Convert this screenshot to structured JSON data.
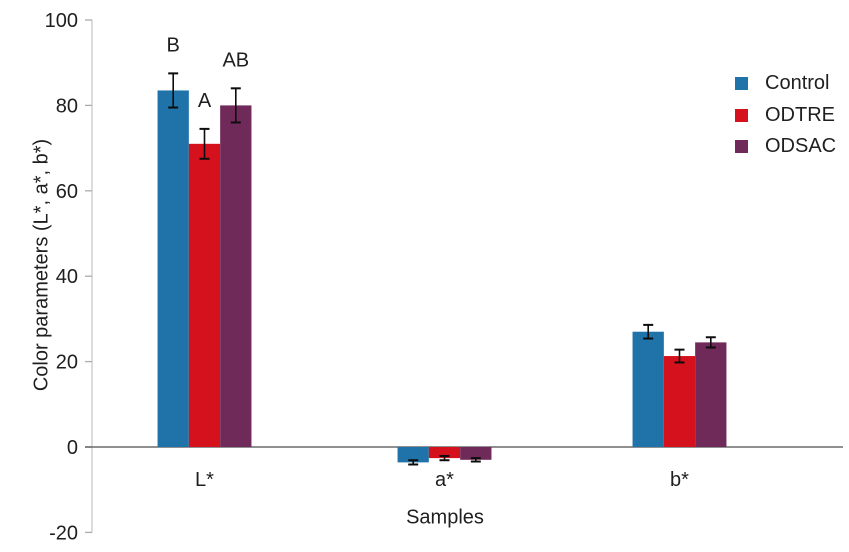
{
  "chart_data": {
    "type": "bar",
    "title": "",
    "xlabel": "Samples",
    "ylabel": "Color parameters (L*, a*, b*)",
    "categories": [
      "L*",
      "a*",
      "b*"
    ],
    "series": [
      {
        "name": "Control",
        "color": "#1F73A8",
        "values": [
          83.5,
          -3.6,
          27.0
        ],
        "errors": [
          4.0,
          0.5,
          1.6
        ]
      },
      {
        "name": "ODTRE",
        "color": "#D4111C",
        "values": [
          71.0,
          -2.6,
          21.3
        ],
        "errors": [
          3.5,
          0.5,
          1.5
        ]
      },
      {
        "name": "ODSAC",
        "color": "#702A5A",
        "values": [
          80.0,
          -3.0,
          24.5
        ],
        "errors": [
          4.0,
          0.4,
          1.2
        ]
      }
    ],
    "annotations": [
      {
        "text": "B",
        "category": "L*",
        "series": "Control"
      },
      {
        "text": "A",
        "category": "L*",
        "series": "ODTRE"
      },
      {
        "text": "AB",
        "category": "L*",
        "series": "ODSAC"
      }
    ],
    "y_ticks": [
      100,
      80,
      60,
      40,
      20,
      0,
      -20
    ],
    "ylim": [
      -20,
      100
    ],
    "grid": false,
    "legend_position": "right",
    "error_bar_color": "#0d0d0d",
    "axis_line_color": "#c9c9c9",
    "minor_tick_color": "#ababab",
    "zero_line_color": "#6b6b6b",
    "text_color": "#1f1f1f"
  }
}
